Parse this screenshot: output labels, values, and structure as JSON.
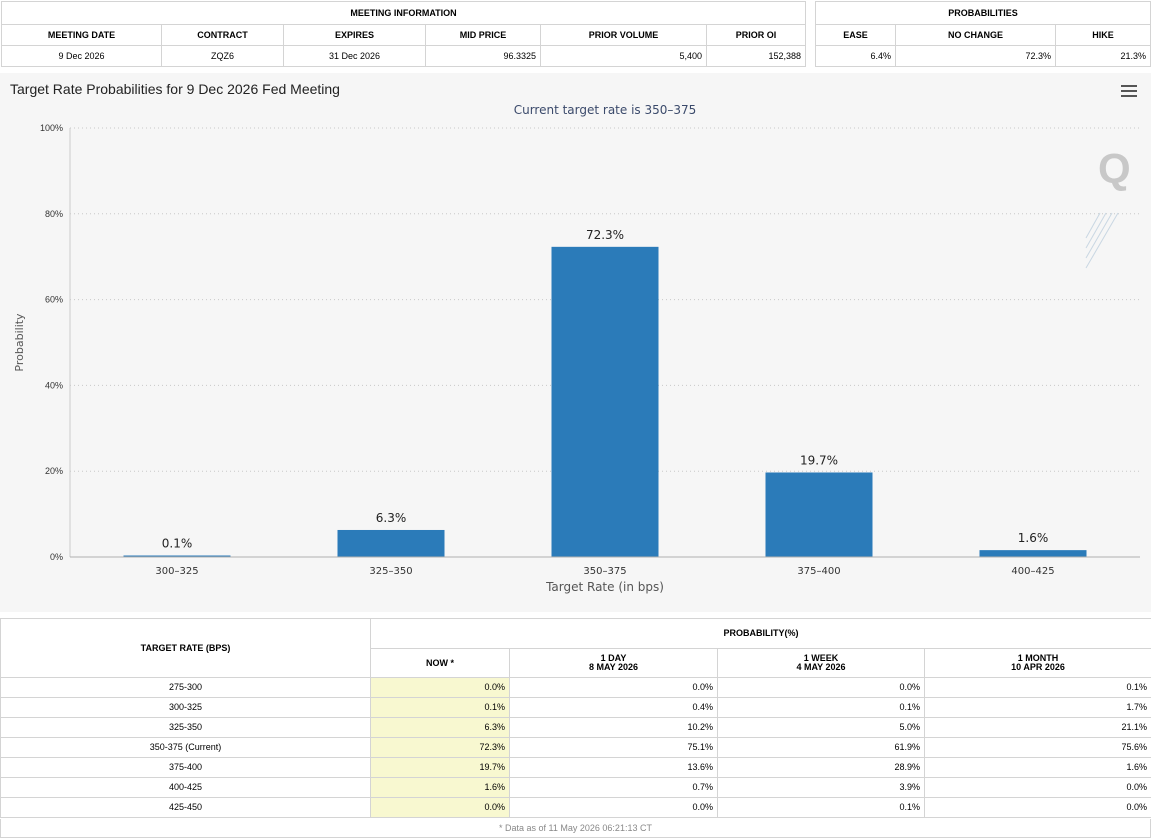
{
  "meeting_info": {
    "header": "MEETING INFORMATION",
    "columns": [
      "MEETING DATE",
      "CONTRACT",
      "EXPIRES",
      "MID PRICE",
      "PRIOR VOLUME",
      "PRIOR OI"
    ],
    "values": [
      "9 Dec 2026",
      "ZQZ6",
      "31 Dec 2026",
      "96.3325",
      "5,400",
      "152,388"
    ]
  },
  "probabilities": {
    "header": "PROBABILITIES",
    "columns": [
      "EASE",
      "NO CHANGE",
      "HIKE"
    ],
    "values": [
      "6.4%",
      "72.3%",
      "21.3%"
    ]
  },
  "chart": {
    "title": "Target Rate Probabilities for 9 Dec 2026 Fed Meeting",
    "subtitle": "Current target rate is 350–375",
    "menu_icon": "hamburger-menu-icon",
    "watermark": "Q"
  },
  "chart_data": {
    "type": "bar",
    "categories": [
      "300–325",
      "325–350",
      "350–375",
      "375–400",
      "400–425"
    ],
    "values": [
      0.1,
      6.3,
      72.3,
      19.7,
      1.6
    ],
    "data_labels": [
      "0.1%",
      "6.3%",
      "72.3%",
      "19.7%",
      "1.6%"
    ],
    "xlabel": "Target Rate (in bps)",
    "ylabel": "Probability",
    "ylim": [
      0,
      100
    ],
    "yticks": [
      0,
      20,
      40,
      60,
      80,
      100
    ],
    "ytick_labels": [
      "0%",
      "20%",
      "40%",
      "60%",
      "80%",
      "100%"
    ],
    "bar_color": "#2b7bb9",
    "grid": true
  },
  "rates_table": {
    "target_header": "TARGET RATE (BPS)",
    "prob_header": "PROBABILITY(%)",
    "col_now": "NOW *",
    "col_1day": "1 DAY",
    "col_1day_date": "8 MAY 2026",
    "col_1week": "1 WEEK",
    "col_1week_date": "4 MAY 2026",
    "col_1month": "1 MONTH",
    "col_1month_date": "10 APR 2026",
    "rows": [
      [
        "275-300",
        "0.0%",
        "0.0%",
        "0.0%",
        "0.1%"
      ],
      [
        "300-325",
        "0.1%",
        "0.4%",
        "0.1%",
        "1.7%"
      ],
      [
        "325-350",
        "6.3%",
        "10.2%",
        "5.0%",
        "21.1%"
      ],
      [
        "350-375 (Current)",
        "72.3%",
        "75.1%",
        "61.9%",
        "75.6%"
      ],
      [
        "375-400",
        "19.7%",
        "13.6%",
        "28.9%",
        "1.6%"
      ],
      [
        "400-425",
        "1.6%",
        "0.7%",
        "3.9%",
        "0.0%"
      ],
      [
        "425-450",
        "0.0%",
        "0.0%",
        "0.1%",
        "0.0%"
      ]
    ],
    "footnote": "* Data as of 11 May 2026 06:21:13 CT"
  }
}
